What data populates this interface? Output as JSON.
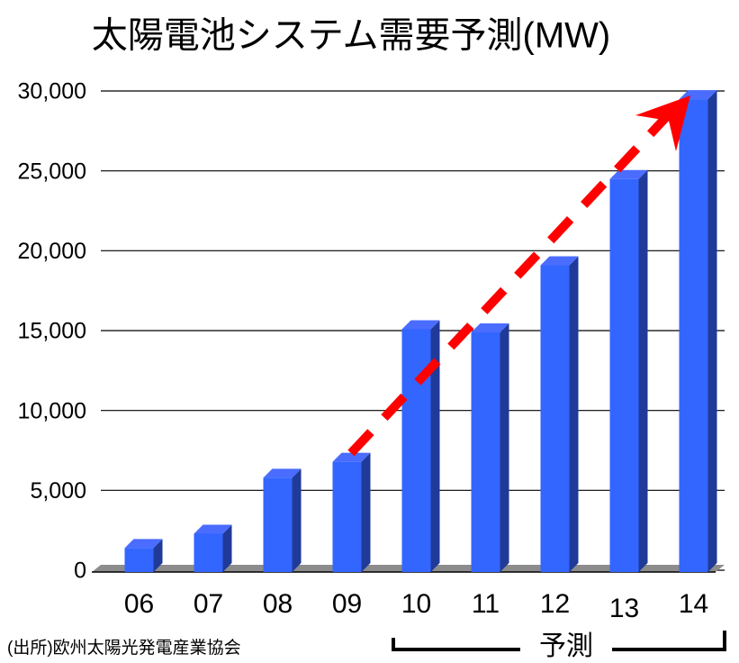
{
  "chart_data": {
    "type": "bar3d",
    "title": "太陽電池システム需要予測(MW)",
    "categories": [
      "06",
      "07",
      "08",
      "09",
      "10",
      "11",
      "12",
      "13",
      "14"
    ],
    "values": [
      1500,
      2400,
      5900,
      6900,
      15200,
      15000,
      19200,
      24600,
      29600
    ],
    "color": "#3366ff",
    "ylim": [
      0,
      30000
    ],
    "yticks": [
      0,
      {
        "value": 5000,
        "label": "5,000"
      },
      {
        "value": 10000,
        "label": "10,000"
      },
      {
        "value": 15000,
        "label": "15,000"
      },
      {
        "value": 20000,
        "label": "20,000"
      },
      {
        "value": 25000,
        "label": "25,000"
      },
      {
        "value": 30000,
        "label": "30,000"
      }
    ],
    "grid": true,
    "source": "(出所)欧州太陽光発電産業協会",
    "forecast_label": "予測"
  }
}
